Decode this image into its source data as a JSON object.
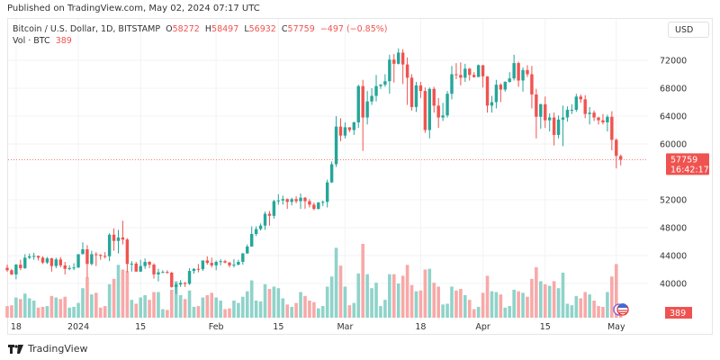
{
  "published": "Published on TradingView.com, May 02, 2024 07:17 UTC",
  "legend": {
    "symbol": "Bitcoin / U.S. Dollar, 1D, BITSTAMP",
    "o_label": "O",
    "o": "58272",
    "h_label": "H",
    "h": "58497",
    "l_label": "L",
    "l": "56932",
    "c_label": "C",
    "c": "57759",
    "change": "−497 (−0.85%)",
    "vol_label": "Vol · BTC",
    "vol": "389"
  },
  "currency_button": "USD",
  "last_price": {
    "price": "57759",
    "countdown": "16:42:17",
    "value": 57759
  },
  "volume_label": "389",
  "brand": "TradingView",
  "colors": {
    "up": "#26a69a",
    "down": "#ef5350",
    "vol_up": "#8fd3ca",
    "vol_down": "#f7a9a8"
  },
  "chart_data": {
    "type": "candlestick",
    "price_ticks": [
      40000,
      44000,
      48000,
      52000,
      60000,
      64000,
      68000,
      72000
    ],
    "price_tick_labels": [
      "40000",
      "44000",
      "48000",
      "52000",
      "60000",
      "64000",
      "68000",
      "72000"
    ],
    "time_labels": [
      {
        "label": "18",
        "date": "2023-12-18"
      },
      {
        "label": "2024",
        "date": "2024-01-01"
      },
      {
        "label": "15",
        "date": "2024-01-15"
      },
      {
        "label": "Feb",
        "date": "2024-02-01"
      },
      {
        "label": "15",
        "date": "2024-02-15"
      },
      {
        "label": "Mar",
        "date": "2024-03-01"
      },
      {
        "label": "18",
        "date": "2024-03-18"
      },
      {
        "label": "Apr",
        "date": "2024-04-01"
      },
      {
        "label": "15",
        "date": "2024-04-15"
      },
      {
        "label": "May",
        "date": "2024-05-01"
      }
    ],
    "columns": [
      "date",
      "open",
      "high",
      "low",
      "close",
      "volume"
    ],
    "candles": [
      [
        "2023-12-16",
        42250,
        42700,
        41700,
        41900,
        1500
      ],
      [
        "2023-12-17",
        41900,
        42100,
        41200,
        41300,
        1600
      ],
      [
        "2023-12-18",
        41300,
        42800,
        40600,
        42700,
        2600
      ],
      [
        "2023-12-19",
        42700,
        43400,
        41900,
        42200,
        2400
      ],
      [
        "2023-12-20",
        42200,
        44200,
        42100,
        43700,
        3100
      ],
      [
        "2023-12-21",
        43700,
        44300,
        43500,
        43900,
        2500
      ],
      [
        "2023-12-22",
        43900,
        44400,
        43400,
        43950,
        2200
      ],
      [
        "2023-12-23",
        43950,
        44000,
        43300,
        43700,
        1300
      ],
      [
        "2023-12-24",
        43700,
        43900,
        42800,
        43000,
        1400
      ],
      [
        "2023-12-25",
        43000,
        43800,
        42800,
        43600,
        1500
      ],
      [
        "2023-12-26",
        43600,
        43700,
        41700,
        42500,
        2800
      ],
      [
        "2023-12-27",
        42500,
        43700,
        42200,
        43450,
        2600
      ],
      [
        "2023-12-28",
        43450,
        43800,
        42300,
        42600,
        2400
      ],
      [
        "2023-12-29",
        42600,
        43100,
        41300,
        42100,
        2700
      ],
      [
        "2023-12-30",
        42100,
        42600,
        41900,
        42200,
        1300
      ],
      [
        "2023-12-31",
        42200,
        42900,
        41900,
        42300,
        1400
      ],
      [
        "2024-01-01",
        42300,
        44200,
        42200,
        44200,
        1900
      ],
      [
        "2024-01-02",
        44200,
        45900,
        44200,
        44900,
        3800
      ],
      [
        "2024-01-03",
        44900,
        45500,
        40800,
        42800,
        5200
      ],
      [
        "2024-01-04",
        42800,
        44700,
        42600,
        44200,
        3000
      ],
      [
        "2024-01-05",
        44200,
        44500,
        42500,
        44100,
        3200
      ],
      [
        "2024-01-06",
        44100,
        44200,
        43400,
        43950,
        1300
      ],
      [
        "2024-01-07",
        43950,
        44500,
        43600,
        43900,
        1500
      ],
      [
        "2024-01-08",
        43900,
        47200,
        43200,
        47000,
        4300
      ],
      [
        "2024-01-09",
        47000,
        47900,
        44700,
        46100,
        5000
      ],
      [
        "2024-01-10",
        46100,
        47700,
        44300,
        46600,
        6800
      ],
      [
        "2024-01-11",
        46600,
        49000,
        45600,
        46300,
        6200
      ],
      [
        "2024-01-12",
        46300,
        46500,
        41600,
        42800,
        6000
      ],
      [
        "2024-01-13",
        42800,
        43200,
        41700,
        42850,
        2300
      ],
      [
        "2024-01-14",
        42850,
        43100,
        41700,
        41700,
        1800
      ],
      [
        "2024-01-15",
        41700,
        43400,
        41700,
        42500,
        2600
      ],
      [
        "2024-01-16",
        42500,
        43600,
        42100,
        43100,
        2900
      ],
      [
        "2024-01-17",
        43100,
        43200,
        42200,
        42700,
        2300
      ],
      [
        "2024-01-18",
        42700,
        42900,
        40700,
        41300,
        3300
      ],
      [
        "2024-01-19",
        41300,
        42100,
        40300,
        41600,
        3300
      ],
      [
        "2024-01-20",
        41600,
        41900,
        41500,
        41650,
        1100
      ],
      [
        "2024-01-21",
        41650,
        41900,
        41400,
        41550,
        1000
      ],
      [
        "2024-01-22",
        41550,
        41700,
        39400,
        39500,
        3600
      ],
      [
        "2024-01-23",
        39500,
        40100,
        38500,
        39850,
        4700
      ],
      [
        "2024-01-24",
        39850,
        40500,
        39500,
        40100,
        2900
      ],
      [
        "2024-01-25",
        40100,
        40200,
        39500,
        39950,
        2400
      ],
      [
        "2024-01-26",
        39950,
        42200,
        39800,
        41800,
        3500
      ],
      [
        "2024-01-27",
        41800,
        42200,
        41400,
        42100,
        1400
      ],
      [
        "2024-01-28",
        42100,
        42800,
        41600,
        42050,
        1500
      ],
      [
        "2024-01-29",
        42050,
        43300,
        41800,
        43300,
        2600
      ],
      [
        "2024-01-30",
        43300,
        43900,
        42700,
        42950,
        2900
      ],
      [
        "2024-01-31",
        42950,
        43700,
        42300,
        42600,
        3200
      ],
      [
        "2024-02-01",
        42600,
        43300,
        41900,
        43100,
        2600
      ],
      [
        "2024-02-02",
        43100,
        43500,
        42600,
        43200,
        2200
      ],
      [
        "2024-02-03",
        43200,
        43400,
        42900,
        43000,
        1100
      ],
      [
        "2024-02-04",
        43000,
        43100,
        42300,
        42600,
        1200
      ],
      [
        "2024-02-05",
        42600,
        43500,
        42300,
        42700,
        2200
      ],
      [
        "2024-02-06",
        42700,
        43400,
        42600,
        43100,
        1900
      ],
      [
        "2024-02-07",
        43100,
        44400,
        42700,
        44300,
        2700
      ],
      [
        "2024-02-08",
        44300,
        45600,
        44300,
        45300,
        3400
      ],
      [
        "2024-02-09",
        45300,
        48200,
        45300,
        47100,
        4800
      ],
      [
        "2024-02-10",
        47100,
        48200,
        46800,
        47800,
        2200
      ],
      [
        "2024-02-11",
        47800,
        48600,
        47600,
        48300,
        2100
      ],
      [
        "2024-02-12",
        48300,
        50300,
        47700,
        50000,
        4300
      ],
      [
        "2024-02-13",
        50000,
        50400,
        48300,
        49700,
        3700
      ],
      [
        "2024-02-14",
        49700,
        52000,
        49300,
        51800,
        4000
      ],
      [
        "2024-02-15",
        51800,
        52800,
        51300,
        51900,
        3800
      ],
      [
        "2024-02-16",
        51900,
        52600,
        51300,
        52100,
        2500
      ],
      [
        "2024-02-17",
        52100,
        52200,
        50700,
        51700,
        1700
      ],
      [
        "2024-02-18",
        51700,
        52300,
        51200,
        52100,
        1400
      ],
      [
        "2024-02-19",
        52100,
        52500,
        51500,
        51800,
        1900
      ],
      [
        "2024-02-20",
        51800,
        52900,
        50700,
        52300,
        3300
      ],
      [
        "2024-02-21",
        52300,
        52400,
        50700,
        51800,
        2800
      ],
      [
        "2024-02-22",
        51800,
        52100,
        50900,
        51300,
        2200
      ],
      [
        "2024-02-23",
        51300,
        51600,
        50500,
        50700,
        2000
      ],
      [
        "2024-02-24",
        50700,
        51700,
        50600,
        51600,
        1200
      ],
      [
        "2024-02-25",
        51600,
        51900,
        51100,
        51700,
        1500
      ],
      [
        "2024-02-26",
        51700,
        54900,
        50900,
        54500,
        4000
      ],
      [
        "2024-02-27",
        54500,
        57500,
        54400,
        57100,
        5300
      ],
      [
        "2024-02-28",
        57100,
        64000,
        56700,
        62500,
        9000
      ],
      [
        "2024-02-29",
        62500,
        63700,
        60400,
        61200,
        6700
      ],
      [
        "2024-03-01",
        61200,
        63100,
        60800,
        62400,
        4000
      ],
      [
        "2024-03-02",
        62400,
        62400,
        61700,
        62000,
        1600
      ],
      [
        "2024-03-03",
        62000,
        63200,
        61300,
        63100,
        1900
      ],
      [
        "2024-03-04",
        63100,
        68500,
        62300,
        68300,
        5700
      ],
      [
        "2024-03-05",
        68300,
        69200,
        59000,
        63800,
        9500
      ],
      [
        "2024-03-06",
        63800,
        67600,
        62800,
        66100,
        5600
      ],
      [
        "2024-03-07",
        66100,
        68000,
        65600,
        66900,
        3800
      ],
      [
        "2024-03-08",
        66900,
        69900,
        66100,
        68300,
        4500
      ],
      [
        "2024-03-09",
        68300,
        68600,
        67900,
        68500,
        1500
      ],
      [
        "2024-03-10",
        68500,
        70000,
        68200,
        69000,
        2300
      ],
      [
        "2024-03-11",
        69000,
        72800,
        67200,
        72100,
        5600
      ],
      [
        "2024-03-12",
        72100,
        72900,
        68800,
        71500,
        5600
      ],
      [
        "2024-03-13",
        71500,
        73700,
        71400,
        73100,
        4400
      ],
      [
        "2024-03-14",
        73100,
        73600,
        68600,
        71400,
        5400
      ],
      [
        "2024-03-15",
        71400,
        72400,
        65600,
        69500,
        6800
      ],
      [
        "2024-03-16",
        69500,
        70000,
        64800,
        65300,
        4200
      ],
      [
        "2024-03-17",
        65300,
        68900,
        64600,
        68400,
        3400
      ],
      [
        "2024-03-18",
        68400,
        68900,
        66600,
        67600,
        3500
      ],
      [
        "2024-03-19",
        67600,
        68100,
        61600,
        62000,
        6200
      ],
      [
        "2024-03-20",
        62000,
        68100,
        60800,
        67900,
        6300
      ],
      [
        "2024-03-21",
        67900,
        68200,
        64500,
        65500,
        4500
      ],
      [
        "2024-03-22",
        65500,
        66600,
        62300,
        63800,
        4000
      ],
      [
        "2024-03-23",
        63800,
        65900,
        63300,
        64100,
        1700
      ],
      [
        "2024-03-24",
        64100,
        67600,
        63800,
        67200,
        1800
      ],
      [
        "2024-03-25",
        67200,
        71200,
        66400,
        70000,
        4000
      ],
      [
        "2024-03-26",
        70000,
        71600,
        69300,
        69900,
        3500
      ],
      [
        "2024-03-27",
        69900,
        71700,
        68400,
        69500,
        3700
      ],
      [
        "2024-03-28",
        69500,
        71500,
        68900,
        70800,
        2900
      ],
      [
        "2024-03-29",
        70800,
        70900,
        69100,
        69900,
        2300
      ],
      [
        "2024-03-30",
        69900,
        70300,
        69500,
        69600,
        1100
      ],
      [
        "2024-03-31",
        69600,
        71400,
        69600,
        71300,
        1400
      ],
      [
        "2024-04-01",
        71300,
        71300,
        68100,
        69700,
        3200
      ],
      [
        "2024-04-02",
        69700,
        69700,
        64500,
        65500,
        5400
      ],
      [
        "2024-04-03",
        65500,
        66900,
        64500,
        66000,
        3400
      ],
      [
        "2024-04-04",
        66000,
        69200,
        65100,
        68500,
        3300
      ],
      [
        "2024-04-05",
        68500,
        68700,
        66000,
        67800,
        3000
      ],
      [
        "2024-04-06",
        67800,
        69000,
        67500,
        68900,
        1300
      ],
      [
        "2024-04-07",
        68900,
        70300,
        68800,
        69400,
        1500
      ],
      [
        "2024-04-08",
        69400,
        72800,
        69100,
        71600,
        3600
      ],
      [
        "2024-04-09",
        71600,
        71800,
        68200,
        69100,
        3400
      ],
      [
        "2024-04-10",
        69100,
        71000,
        67500,
        70600,
        3200
      ],
      [
        "2024-04-11",
        70600,
        71300,
        69600,
        70000,
        2700
      ],
      [
        "2024-04-12",
        70000,
        71200,
        65100,
        67100,
        5000
      ],
      [
        "2024-04-13",
        67100,
        67900,
        60800,
        63900,
        6500
      ],
      [
        "2024-04-14",
        63900,
        65800,
        62200,
        65700,
        4700
      ],
      [
        "2024-04-15",
        65700,
        66800,
        62300,
        63400,
        4300
      ],
      [
        "2024-04-16",
        63400,
        64400,
        61800,
        63800,
        4100
      ],
      [
        "2024-04-17",
        63800,
        64500,
        59800,
        61300,
        4700
      ],
      [
        "2024-04-18",
        61300,
        64100,
        60800,
        63500,
        3800
      ],
      [
        "2024-04-19",
        63500,
        65500,
        59700,
        63800,
        5800
      ],
      [
        "2024-04-20",
        63800,
        65400,
        63200,
        64900,
        1800
      ],
      [
        "2024-04-21",
        64900,
        65700,
        64300,
        64900,
        1600
      ],
      [
        "2024-04-22",
        64900,
        67200,
        64600,
        66800,
        2800
      ],
      [
        "2024-04-23",
        66800,
        67100,
        65900,
        66400,
        2500
      ],
      [
        "2024-04-24",
        66400,
        67000,
        63700,
        64300,
        3300
      ],
      [
        "2024-04-25",
        64300,
        65300,
        62800,
        64500,
        3000
      ],
      [
        "2024-04-26",
        64500,
        64800,
        63300,
        63800,
        2200
      ],
      [
        "2024-04-27",
        63800,
        63900,
        62800,
        63400,
        1500
      ],
      [
        "2024-04-28",
        63400,
        64300,
        62800,
        63100,
        1400
      ],
      [
        "2024-04-29",
        63100,
        64200,
        61800,
        63900,
        3300
      ],
      [
        "2024-04-30",
        63900,
        64700,
        59100,
        60600,
        5300
      ],
      [
        "2024-05-01",
        60600,
        60800,
        56500,
        58300,
        6900
      ],
      [
        "2024-05-02",
        58272,
        58497,
        56932,
        57759,
        389
      ]
    ]
  }
}
